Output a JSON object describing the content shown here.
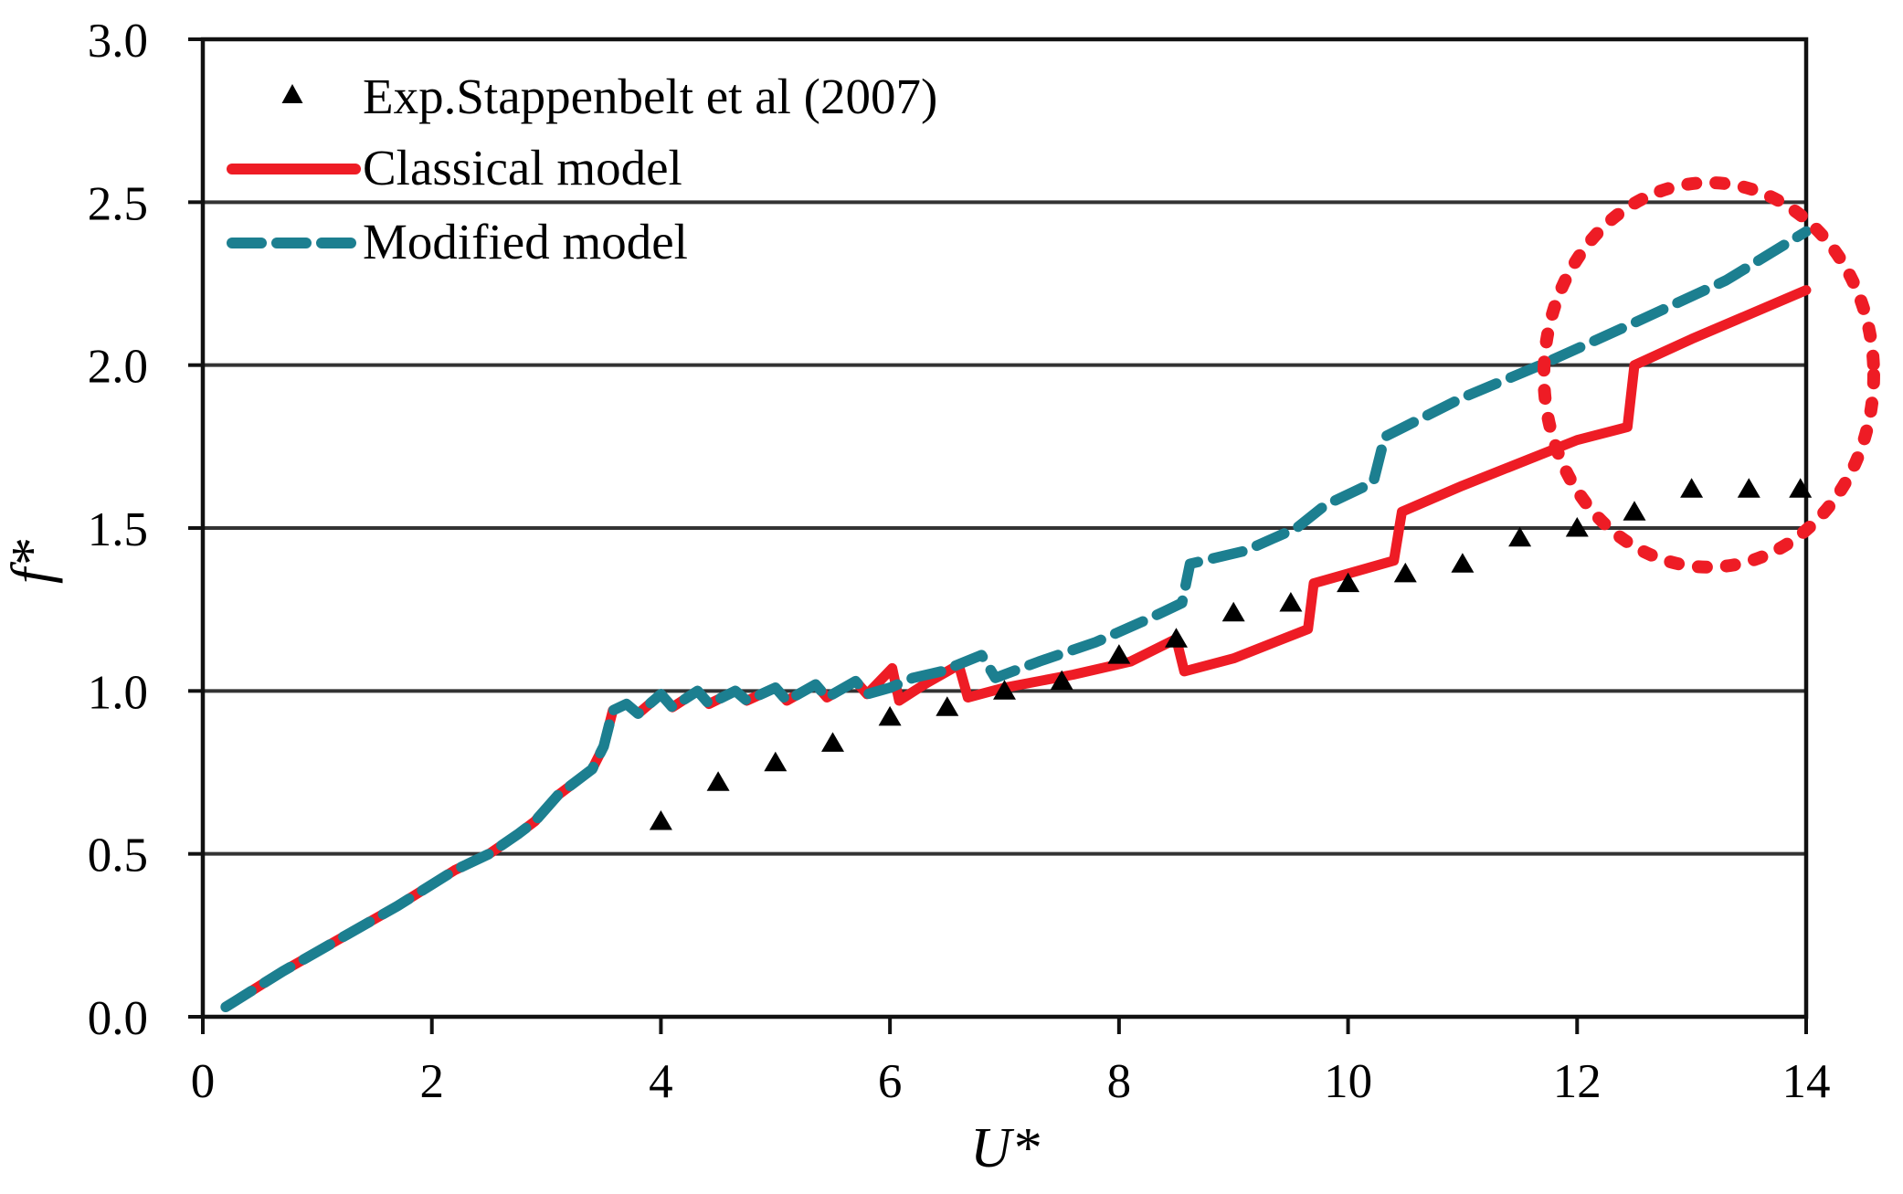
{
  "chart_data": {
    "type": "line",
    "title": "",
    "xlabel": "U*",
    "ylabel": "f*",
    "xlim": [
      0,
      14
    ],
    "ylim": [
      0.0,
      3.0
    ],
    "xticks": [
      0,
      2,
      4,
      6,
      8,
      10,
      12,
      14
    ],
    "xticklabels": [
      "0",
      "2",
      "4",
      "6",
      "8",
      "10",
      "12",
      "14"
    ],
    "yticks": [
      0,
      0.5,
      1.0,
      1.5,
      2.0,
      2.5,
      3.0
    ],
    "yticklabels": [
      "0.0",
      "0.5",
      "1.0",
      "1.5",
      "2.0",
      "2.5",
      "3.0"
    ],
    "grid": "horizontal",
    "legend_position": "top-left-inside",
    "colors": {
      "experiment": "#000000",
      "classical": "#ee1c25",
      "modified": "#1c7f90",
      "gridline": "#333333",
      "axis": "#111111",
      "annotation": "#ee1c25"
    },
    "series": [
      {
        "name": "Exp.Stappenbelt et al (2007)",
        "type": "scatter",
        "marker": "triangle",
        "color": "#000000",
        "points": [
          [
            4.0,
            0.6
          ],
          [
            4.5,
            0.72
          ],
          [
            5.0,
            0.78
          ],
          [
            5.5,
            0.84
          ],
          [
            6.0,
            0.92
          ],
          [
            6.5,
            0.95
          ],
          [
            7.0,
            1.0
          ],
          [
            7.5,
            1.03
          ],
          [
            8.0,
            1.11
          ],
          [
            8.5,
            1.16
          ],
          [
            9.0,
            1.24
          ],
          [
            9.5,
            1.27
          ],
          [
            10.0,
            1.33
          ],
          [
            10.5,
            1.36
          ],
          [
            11.0,
            1.39
          ],
          [
            11.5,
            1.47
          ],
          [
            12.0,
            1.5
          ],
          [
            12.5,
            1.55
          ],
          [
            13.0,
            1.62
          ],
          [
            13.5,
            1.62
          ],
          [
            13.95,
            1.62
          ]
        ]
      },
      {
        "name": "Classical model",
        "type": "line",
        "style": "solid",
        "color": "#ee1c25",
        "points": [
          [
            0.2,
            0.03
          ],
          [
            0.7,
            0.14
          ],
          [
            1.2,
            0.24
          ],
          [
            1.7,
            0.34
          ],
          [
            2.2,
            0.45
          ],
          [
            2.5,
            0.5
          ],
          [
            2.75,
            0.56
          ],
          [
            2.9,
            0.6
          ],
          [
            3.1,
            0.68
          ],
          [
            3.25,
            0.72
          ],
          [
            3.4,
            0.76
          ],
          [
            3.5,
            0.83
          ],
          [
            3.58,
            0.94
          ],
          [
            3.7,
            0.96
          ],
          [
            3.8,
            0.93
          ],
          [
            4.0,
            0.99
          ],
          [
            4.1,
            0.95
          ],
          [
            4.32,
            1.0
          ],
          [
            4.42,
            0.96
          ],
          [
            4.65,
            1.0
          ],
          [
            4.75,
            0.97
          ],
          [
            5.0,
            1.01
          ],
          [
            5.1,
            0.97
          ],
          [
            5.35,
            1.02
          ],
          [
            5.45,
            0.98
          ],
          [
            5.7,
            1.03
          ],
          [
            5.8,
            0.99
          ],
          [
            6.02,
            1.07
          ],
          [
            6.08,
            0.97
          ],
          [
            6.3,
            1.02
          ],
          [
            6.6,
            1.08
          ],
          [
            6.68,
            0.98
          ],
          [
            7.0,
            1.01
          ],
          [
            7.6,
            1.05
          ],
          [
            8.1,
            1.09
          ],
          [
            8.5,
            1.16
          ],
          [
            8.57,
            1.06
          ],
          [
            9.0,
            1.1
          ],
          [
            9.65,
            1.19
          ],
          [
            9.7,
            1.33
          ],
          [
            10.4,
            1.4
          ],
          [
            10.47,
            1.55
          ],
          [
            11.0,
            1.63
          ],
          [
            12.0,
            1.77
          ],
          [
            12.44,
            1.81
          ],
          [
            12.5,
            2.0
          ],
          [
            13.0,
            2.08
          ],
          [
            14.0,
            2.23
          ]
        ]
      },
      {
        "name": "Modified model",
        "type": "line",
        "style": "dashed",
        "color": "#1c7f90",
        "points": [
          [
            0.2,
            0.03
          ],
          [
            0.7,
            0.14
          ],
          [
            1.2,
            0.24
          ],
          [
            1.7,
            0.34
          ],
          [
            2.2,
            0.45
          ],
          [
            2.5,
            0.5
          ],
          [
            2.75,
            0.56
          ],
          [
            2.9,
            0.6
          ],
          [
            3.1,
            0.68
          ],
          [
            3.25,
            0.72
          ],
          [
            3.4,
            0.76
          ],
          [
            3.5,
            0.83
          ],
          [
            3.58,
            0.94
          ],
          [
            3.7,
            0.96
          ],
          [
            3.8,
            0.93
          ],
          [
            4.0,
            0.99
          ],
          [
            4.1,
            0.95
          ],
          [
            4.32,
            1.0
          ],
          [
            4.42,
            0.96
          ],
          [
            4.65,
            1.0
          ],
          [
            4.75,
            0.97
          ],
          [
            5.0,
            1.01
          ],
          [
            5.1,
            0.97
          ],
          [
            5.35,
            1.02
          ],
          [
            5.45,
            0.98
          ],
          [
            5.7,
            1.03
          ],
          [
            5.8,
            0.99
          ],
          [
            6.0,
            1.01
          ],
          [
            6.2,
            1.04
          ],
          [
            6.45,
            1.06
          ],
          [
            6.8,
            1.11
          ],
          [
            6.92,
            1.04
          ],
          [
            7.3,
            1.09
          ],
          [
            7.8,
            1.15
          ],
          [
            8.25,
            1.22
          ],
          [
            8.55,
            1.27
          ],
          [
            8.62,
            1.39
          ],
          [
            9.1,
            1.43
          ],
          [
            9.55,
            1.5
          ],
          [
            9.8,
            1.57
          ],
          [
            10.22,
            1.64
          ],
          [
            10.32,
            1.78
          ],
          [
            11.0,
            1.9
          ],
          [
            11.68,
            2.0
          ],
          [
            12.5,
            2.13
          ],
          [
            13.3,
            2.26
          ],
          [
            14.0,
            2.41
          ]
        ]
      }
    ],
    "annotations": [
      {
        "type": "ellipse",
        "style": "dotted",
        "color": "#ee1c25",
        "center": [
          13.15,
          1.97
        ],
        "rx": 1.44,
        "ry": 0.59,
        "meaning": "highlight of model divergence from experiment at high U*"
      }
    ]
  }
}
